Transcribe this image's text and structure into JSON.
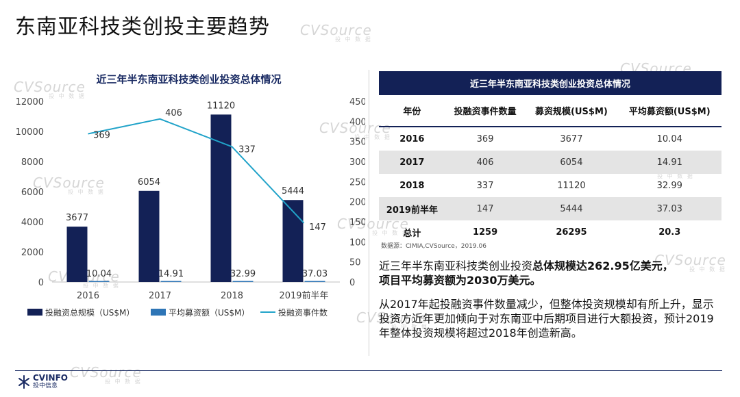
{
  "page_title": "东南亚科技类创投主要趋势",
  "watermark": "CVSource",
  "watermark_sub": "投 中 数 据",
  "chart_data": {
    "type": "bar",
    "title": "近三年半东南亚科技类创业投资总体情况",
    "categories": [
      "2016",
      "2017",
      "2018",
      "2019前半年"
    ],
    "series": [
      {
        "name": "投融资总规模（US$M）",
        "kind": "bar",
        "axis": "left",
        "color": "#132156",
        "values": [
          3677,
          6054,
          11120,
          5444
        ]
      },
      {
        "name": "平均募资额（US$M）",
        "kind": "bar",
        "axis": "left",
        "color": "#2e75b6",
        "values": [
          10.04,
          14.91,
          32.99,
          37.03
        ]
      },
      {
        "name": "投融资事件数",
        "kind": "line",
        "axis": "right",
        "color": "#21a3c9",
        "values": [
          369,
          406,
          337,
          147
        ]
      }
    ],
    "y_left": {
      "ylim": [
        0,
        12000
      ],
      "ticks": [
        0,
        2000,
        4000,
        6000,
        8000,
        10000,
        12000
      ]
    },
    "y_right": {
      "ylim": [
        0,
        450
      ],
      "ticks": [
        0,
        50,
        100,
        150,
        200,
        250,
        300,
        350,
        400,
        450
      ]
    },
    "legend_position": "bottom",
    "grid": false
  },
  "table": {
    "title": "近三年半东南亚科技类创业投资总体情况",
    "headers": [
      "年份",
      "投融资事件数量",
      "募资规模(US$M)",
      "平均募资额(US$M)"
    ],
    "rows": [
      [
        "2016",
        "369",
        "3677",
        "10.04"
      ],
      [
        "2017",
        "406",
        "6054",
        "14.91"
      ],
      [
        "2018",
        "337",
        "11120",
        "32.99"
      ],
      [
        "2019前半年",
        "147",
        "5444",
        "37.03"
      ]
    ],
    "total": [
      "总计",
      "1259",
      "26295",
      "20.3"
    ]
  },
  "source_note": "数据源：CIMIA,CVSource，2019.06",
  "summary": {
    "normal1": "近三年半东南亚科技类创业投资",
    "bold1": "总体规模达262.95亿美元，",
    "bold2": "项目平均募资额为2030万美元。"
  },
  "description": "从2017年起投融资事件数量减少，但整体投资规模却有所上升，显示投资方近年更加倾向于对东南亚中后期项目进行大额投资，预计2019年整体投资规模将超过2018年创造新高。",
  "logo": {
    "main": "CVINFO",
    "sub": "投中信息"
  }
}
